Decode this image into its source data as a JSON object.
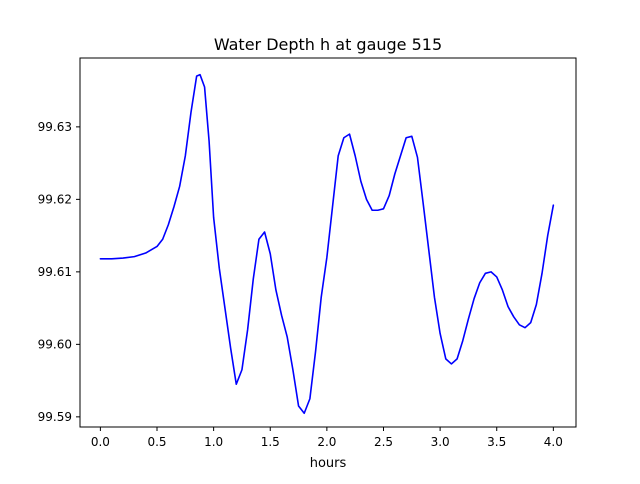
{
  "chart_data": {
    "type": "line",
    "title": "Water Depth h at gauge 515",
    "xlabel": "hours",
    "ylabel": "",
    "xlim": [
      -0.18,
      4.2
    ],
    "ylim": [
      99.5886,
      99.6395
    ],
    "xticks": [
      0.0,
      0.5,
      1.0,
      1.5,
      2.0,
      2.5,
      3.0,
      3.5,
      4.0
    ],
    "xtick_labels": [
      "0.0",
      "0.5",
      "1.0",
      "1.5",
      "2.0",
      "2.5",
      "3.0",
      "3.5",
      "4.0"
    ],
    "yticks": [
      99.59,
      99.6,
      99.61,
      99.62,
      99.63
    ],
    "ytick_labels": [
      "99.59",
      "99.60",
      "99.61",
      "99.62",
      "99.63"
    ],
    "grid": false,
    "legend": "none",
    "series": [
      {
        "color": "#0000ff",
        "x": [
          0.0,
          0.1,
          0.2,
          0.3,
          0.4,
          0.5,
          0.55,
          0.6,
          0.65,
          0.7,
          0.75,
          0.8,
          0.85,
          0.88,
          0.92,
          0.96,
          1.0,
          1.05,
          1.1,
          1.15,
          1.2,
          1.25,
          1.3,
          1.35,
          1.4,
          1.45,
          1.5,
          1.55,
          1.6,
          1.65,
          1.7,
          1.75,
          1.8,
          1.85,
          1.9,
          1.95,
          2.0,
          2.05,
          2.1,
          2.15,
          2.2,
          2.25,
          2.3,
          2.35,
          2.4,
          2.45,
          2.5,
          2.55,
          2.6,
          2.65,
          2.7,
          2.75,
          2.8,
          2.85,
          2.9,
          2.95,
          3.0,
          3.05,
          3.1,
          3.15,
          3.2,
          3.25,
          3.3,
          3.35,
          3.4,
          3.45,
          3.5,
          3.55,
          3.6,
          3.65,
          3.7,
          3.75,
          3.8,
          3.85,
          3.9,
          3.95,
          4.0
        ],
        "y": [
          99.6118,
          99.6118,
          99.6119,
          99.6121,
          99.6126,
          99.6135,
          99.6145,
          99.6165,
          99.619,
          99.6218,
          99.626,
          99.632,
          99.637,
          99.6372,
          99.6355,
          99.628,
          99.6175,
          99.6105,
          99.605,
          99.5995,
          99.5945,
          99.5965,
          99.602,
          99.609,
          99.6145,
          99.6155,
          99.6125,
          99.6075,
          99.604,
          99.601,
          99.5965,
          99.5915,
          99.5905,
          99.5925,
          99.599,
          99.6065,
          99.612,
          99.619,
          99.626,
          99.6285,
          99.629,
          99.626,
          99.6225,
          99.62,
          99.6185,
          99.6185,
          99.6187,
          99.6205,
          99.6235,
          99.626,
          99.6285,
          99.6287,
          99.6258,
          99.6195,
          99.613,
          99.6065,
          99.6015,
          99.598,
          99.5973,
          99.598,
          99.6005,
          99.6035,
          99.6063,
          99.6085,
          99.6098,
          99.61,
          99.6093,
          99.6075,
          99.6052,
          99.6038,
          99.6027,
          99.6023,
          99.603,
          99.6055,
          99.6098,
          99.615,
          99.6192
        ]
      }
    ]
  }
}
